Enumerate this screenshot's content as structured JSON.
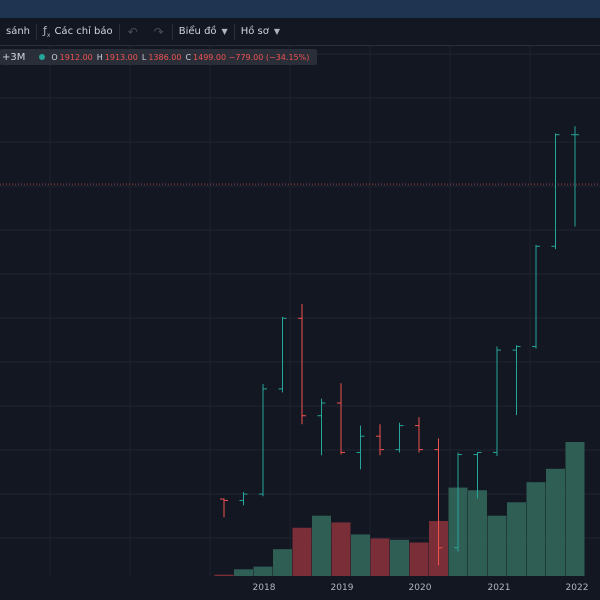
{
  "toolbar": {
    "compare_label": "sánh",
    "indicators_label": "Các chỉ báo",
    "undo_icon": "undo-icon",
    "redo_icon": "redo-icon",
    "chart_type_label": "Biểu đồ",
    "profile_label": "Hồ sơ"
  },
  "legend": {
    "interval": "+3M",
    "o_key": "O",
    "o_val": "1912.00",
    "h_key": "H",
    "h_val": "1913.00",
    "l_key": "L",
    "l_val": "1386.00",
    "c_key": "C",
    "c_val": "1499.00 −779.00 (−34.15%)",
    "dot_color": "#26a69a"
  },
  "colors": {
    "up": "#26a69a",
    "down": "#ef5350",
    "vol_up": "#2f5e55",
    "vol_down": "#7a2e38"
  },
  "chart_data": {
    "type": "bar",
    "x_ticks": [
      "2018",
      "2019",
      "2020",
      "2021",
      "2022"
    ],
    "series": [
      {
        "period": "2017 Q3",
        "o": 24.4,
        "h": 24.5,
        "l": 21.8,
        "c": 24.2,
        "v": 1
      },
      {
        "period": "2017 Q4",
        "o": 24.2,
        "h": 25.4,
        "l": 23.5,
        "c": 25.1,
        "v": 5
      },
      {
        "period": "2018 Q1",
        "o": 25.1,
        "h": 40.7,
        "l": 24.8,
        "c": 40.0,
        "v": 7
      },
      {
        "period": "2018 Q2",
        "o": 40.0,
        "h": 50.2,
        "l": 39.5,
        "c": 50.0,
        "v": 20
      },
      {
        "period": "2018 Q3",
        "o": 50.0,
        "h": 52.0,
        "l": 35.0,
        "c": 36.2,
        "v": 36
      },
      {
        "period": "2018 Q4",
        "o": 36.2,
        "h": 38.6,
        "l": 30.6,
        "c": 38.0,
        "v": 45
      },
      {
        "period": "2019 Q1",
        "o": 38.0,
        "h": 40.8,
        "l": 30.7,
        "c": 31.0,
        "v": 40
      },
      {
        "period": "2019 Q2",
        "o": 31.0,
        "h": 34.8,
        "l": 28.6,
        "c": 33.3,
        "v": 31
      },
      {
        "period": "2019 Q3",
        "o": 33.3,
        "h": 35.0,
        "l": 30.6,
        "c": 31.4,
        "v": 28
      },
      {
        "period": "2019 Q4",
        "o": 31.4,
        "h": 35.2,
        "l": 31.0,
        "c": 34.8,
        "v": 27
      },
      {
        "period": "2020 Q1",
        "o": 34.8,
        "h": 36.0,
        "l": 31.0,
        "c": 31.4,
        "v": 25
      },
      {
        "period": "2020 Q2",
        "o": 31.4,
        "h": 33.0,
        "l": 15.0,
        "c": 17.5,
        "v": 41
      },
      {
        "period": "2020 Q3",
        "o": 17.5,
        "h": 31.0,
        "l": 17.0,
        "c": 30.7,
        "v": 66
      },
      {
        "period": "2020 Q4",
        "o": 30.7,
        "h": 31.0,
        "l": 24.5,
        "c": 31.0,
        "v": 64
      },
      {
        "period": "2021 Q1",
        "o": 31.0,
        "h": 46.0,
        "l": 30.5,
        "c": 45.5,
        "v": 45
      },
      {
        "period": "2021 Q2",
        "o": 45.5,
        "h": 46.2,
        "l": 36.3,
        "c": 46.0,
        "v": 55
      },
      {
        "period": "2021 Q3",
        "o": 46.0,
        "h": 60.4,
        "l": 45.7,
        "c": 60.2,
        "v": 70
      },
      {
        "period": "2021 Q4",
        "o": 60.2,
        "h": 76.2,
        "l": 59.8,
        "c": 76.0,
        "v": 80
      },
      {
        "period": "2022 Q1",
        "o": 76.0,
        "h": 77.2,
        "l": 63.0,
        "c": 76.0,
        "v": 100
      }
    ],
    "price_line": 69.0,
    "ylim": [
      13.5,
      88
    ],
    "volume_max": 100,
    "grid": true
  }
}
